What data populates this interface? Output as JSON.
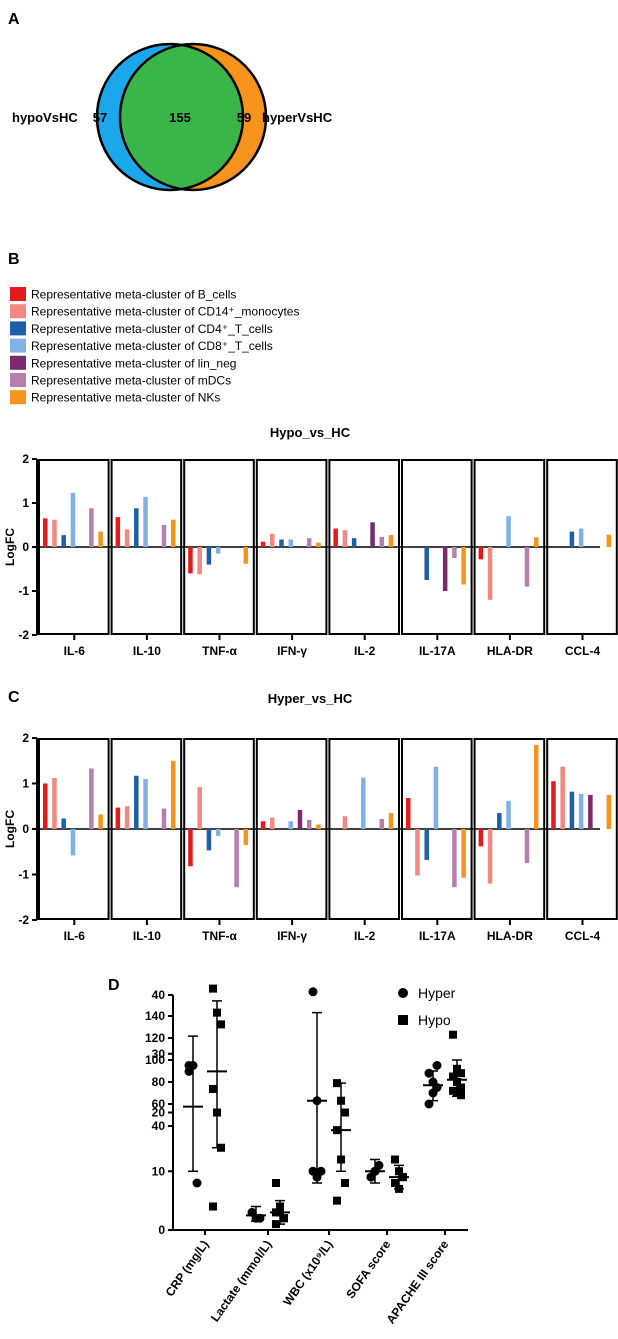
{
  "panels": {
    "a": "A",
    "b": "B",
    "c": "C",
    "d": "D"
  },
  "venn": {
    "left_label": "hypoVsHC",
    "right_label": "hyperVsHC",
    "left_only": "57",
    "overlap": "155",
    "right_only": "59",
    "colors": {
      "left": "#1aa7ec",
      "right": "#f7941d",
      "overlap": "#39b54a"
    }
  },
  "legend": [
    {
      "label": "Representative meta-cluster of B_cells",
      "color": "#e41a1c"
    },
    {
      "label": "Representative meta-cluster of CD14⁺_monocytes",
      "color": "#f4877f"
    },
    {
      "label": "Representative meta-cluster of CD4⁺_T_cells",
      "color": "#1f5fa8"
    },
    {
      "label": "Representative meta-cluster of CD8⁺_T_cells",
      "color": "#7fb2e5"
    },
    {
      "label": "Representative meta-cluster of lin_neg",
      "color": "#7b2a6e"
    },
    {
      "label": "Representative meta-cluster of mDCs",
      "color": "#b57fae"
    },
    {
      "label": "Representative meta-cluster of NKs",
      "color": "#f7941d"
    }
  ],
  "chart_data": [
    {
      "type": "bar",
      "title": "Hypo_vs_HC",
      "ylabel": "LogFC",
      "ylim": [
        -2,
        2
      ],
      "yticks": [
        "2",
        "1",
        "0",
        "-1",
        "-2"
      ],
      "categories": [
        "IL-6",
        "IL-10",
        "TNF-α",
        "IFN-γ",
        "IL-2",
        "IL-17A",
        "HLA-DR",
        "CCL-4"
      ],
      "series": [
        {
          "name": "B_cells",
          "values": [
            0.65,
            0.68,
            -0.6,
            0.12,
            0.42,
            0,
            -0.28,
            0
          ]
        },
        {
          "name": "CD14+_monocytes",
          "values": [
            0.62,
            0.4,
            -0.62,
            0.3,
            0.38,
            0,
            -1.2,
            0
          ]
        },
        {
          "name": "CD4+_T_cells",
          "values": [
            0.27,
            0.88,
            -0.4,
            0.17,
            0.2,
            -0.75,
            0,
            0.35
          ]
        },
        {
          "name": "CD8+_T_cells",
          "values": [
            1.23,
            1.14,
            -0.15,
            0.17,
            0,
            0,
            0.7,
            0.42
          ]
        },
        {
          "name": "lin_neg",
          "values": [
            0,
            0,
            0,
            0,
            0.56,
            -1.0,
            0,
            0
          ]
        },
        {
          "name": "mDCs",
          "values": [
            0.88,
            0.5,
            0,
            0.2,
            0.23,
            -0.25,
            -0.9,
            0
          ]
        },
        {
          "name": "NKs",
          "values": [
            0.35,
            0.62,
            -0.38,
            0.1,
            0.27,
            -0.85,
            0.22,
            0.28
          ]
        }
      ]
    },
    {
      "type": "bar",
      "title": "Hyper_vs_HC",
      "ylabel": "LogFC",
      "ylim": [
        -2,
        2
      ],
      "yticks": [
        "2",
        "1",
        "0",
        "-1",
        "-2"
      ],
      "categories": [
        "IL-6",
        "IL-10",
        "TNF-α",
        "IFN-γ",
        "IL-2",
        "IL-17A",
        "HLA-DR",
        "CCL-4"
      ],
      "series": [
        {
          "name": "B_cells",
          "values": [
            1.0,
            0.47,
            -0.82,
            0.17,
            0,
            0.68,
            -0.38,
            1.05
          ]
        },
        {
          "name": "CD14+_monocytes",
          "values": [
            1.12,
            0.5,
            0.92,
            0.25,
            0.28,
            -1.02,
            -1.2,
            1.37
          ]
        },
        {
          "name": "CD4+_T_cells",
          "values": [
            0.23,
            1.17,
            -0.47,
            0,
            0,
            -0.68,
            0.35,
            0.82
          ]
        },
        {
          "name": "CD8+_T_cells",
          "values": [
            -0.58,
            1.1,
            -0.15,
            0.17,
            1.13,
            1.37,
            0.62,
            0.77
          ]
        },
        {
          "name": "lin_neg",
          "values": [
            0,
            0,
            0,
            0.42,
            0,
            0,
            0,
            0.75
          ]
        },
        {
          "name": "mDCs",
          "values": [
            1.33,
            0.45,
            -1.28,
            0.2,
            0.22,
            -1.28,
            -0.75,
            0
          ]
        },
        {
          "name": "NKs",
          "values": [
            0.32,
            1.5,
            -0.35,
            0.1,
            0.35,
            -1.07,
            1.85,
            0.75
          ]
        }
      ]
    },
    {
      "type": "scatter",
      "legend": [
        {
          "name": "Hyper",
          "marker": "circle"
        },
        {
          "name": "Hypo",
          "marker": "square"
        }
      ],
      "categories": [
        "CRP (mg/L)",
        "Lactate (mmol/L)",
        "WBC (x10⁹/L)",
        "SOFA score",
        "APACHE III score"
      ],
      "y_lower_ticks": [
        "0",
        "10",
        "20",
        "30",
        "40"
      ],
      "y_upper_ticks": [
        "40",
        "60",
        "80",
        "100",
        "120",
        "140"
      ],
      "ylim_lower": [
        0,
        40
      ],
      "ylim_upper": [
        40,
        140
      ],
      "series": [
        {
          "name": "Hyper",
          "values": [
            [
              28,
              28,
              8,
              27
            ],
            [
              3,
              2,
              2
            ],
            [
              44,
              22,
              10,
              10,
              9
            ],
            [
              9,
              10,
              11,
              9,
              10
            ],
            [
              88,
              80,
              75,
              60,
              70,
              95
            ]
          ],
          "mean": [
            21,
            2.5,
            22,
            10,
            77
          ],
          "sd_low": [
            10,
            1.5,
            8,
            8,
            63
          ],
          "sd_high": [
            33,
            4,
            37,
            12,
            90
          ]
        },
        {
          "name": "Hypo",
          "values": [
            [
              48,
              37,
              35,
              24,
              20,
              14,
              4
            ],
            [
              8,
              3,
              2,
              1,
              4,
              2,
              3
            ],
            [
              25,
              22,
              20,
              17,
              12,
              8,
              5
            ],
            [
              12,
              10,
              9,
              8,
              7,
              9
            ],
            [
              123,
              92,
              88,
              85,
              80,
              75,
              72,
              70,
              68
            ]
          ],
          "mean": [
            27,
            3,
            17,
            9,
            82
          ],
          "sd_low": [
            14,
            1,
            10,
            7,
            67
          ],
          "sd_high": [
            39,
            5,
            25,
            11,
            100
          ]
        }
      ]
    }
  ]
}
